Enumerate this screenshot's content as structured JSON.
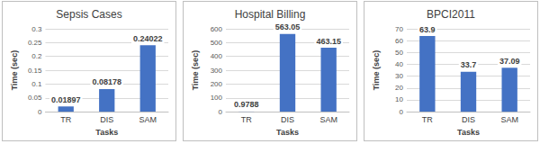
{
  "chart_data": [
    {
      "type": "bar",
      "title": "Sepsis Cases",
      "xlabel": "Tasks",
      "ylabel": "Time (sec)",
      "categories": [
        "TR",
        "DIS",
        "SAM"
      ],
      "values": [
        0.01897,
        0.08178,
        0.24022
      ],
      "color": "#4472c4",
      "ylim": [
        0,
        0.3
      ],
      "yticks": [
        0,
        0.05,
        0.1,
        0.15,
        0.2,
        0.25,
        0.3
      ],
      "grid": true,
      "data_labels": true
    },
    {
      "type": "bar",
      "title": "Hospital Billing",
      "xlabel": "Tasks",
      "ylabel": "Time (sec)",
      "categories": [
        "TR",
        "DIS",
        "SAM"
      ],
      "values": [
        0.9788,
        563.05,
        463.15
      ],
      "color": "#4472c4",
      "ylim": [
        0,
        600
      ],
      "yticks": [
        0,
        100,
        200,
        300,
        400,
        500,
        600
      ],
      "grid": true,
      "data_labels": true
    },
    {
      "type": "bar",
      "title": "BPCI2011",
      "xlabel": "Tasks",
      "ylabel": "Time (sec)",
      "categories": [
        "TR",
        "DIS",
        "SAM"
      ],
      "values": [
        63.9,
        33.7,
        37.09
      ],
      "color": "#4472c4",
      "ylim": [
        0,
        70
      ],
      "yticks": [
        0,
        10,
        20,
        30,
        40,
        50,
        60,
        70
      ],
      "grid": true,
      "data_labels": true
    }
  ]
}
